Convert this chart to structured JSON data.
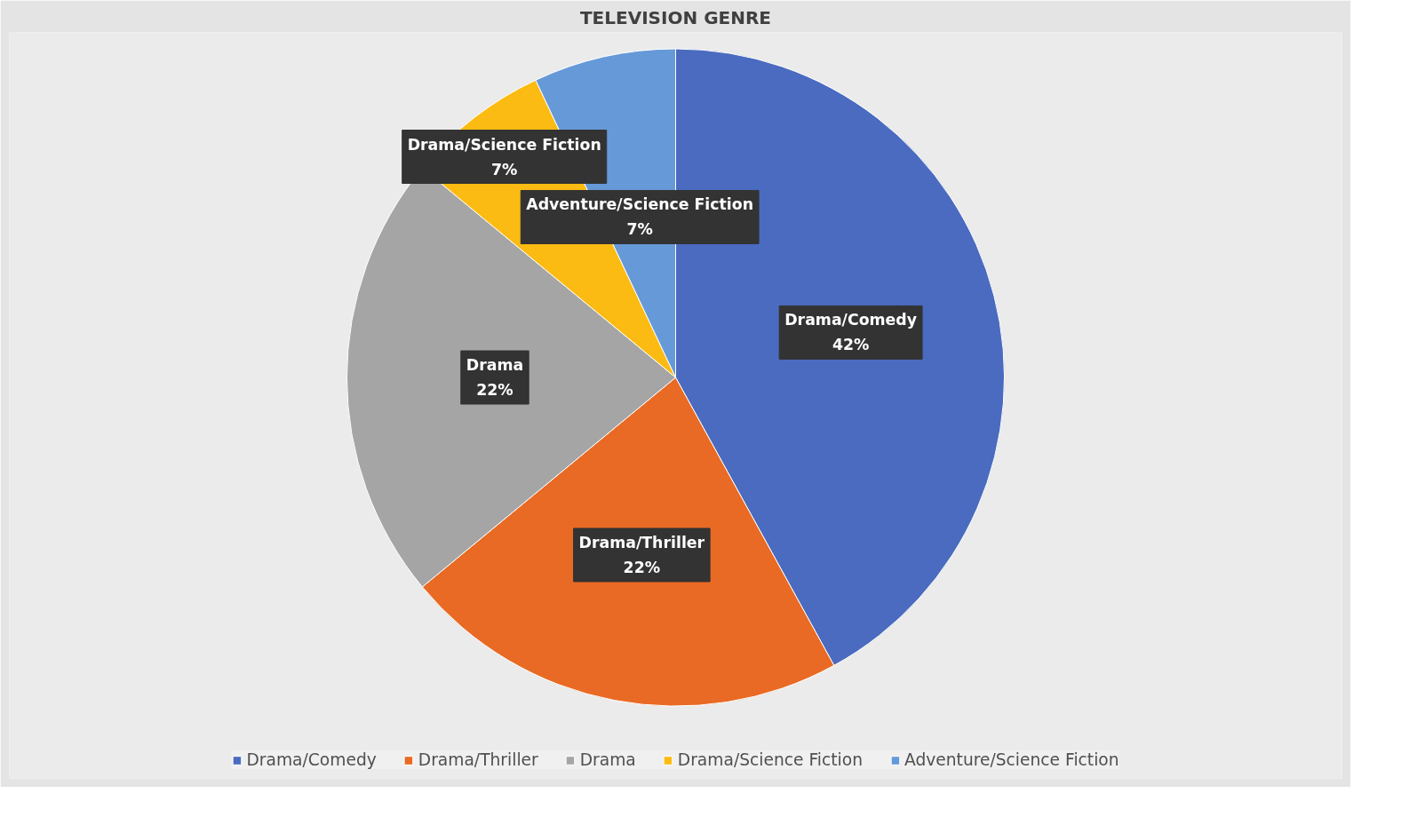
{
  "chart_data": {
    "type": "pie",
    "title": "TELEVISION GENRE",
    "categories": [
      "Drama/Comedy",
      "Drama/Thriller",
      "Drama",
      "Drama/Science Fiction",
      "Adventure/Science Fiction"
    ],
    "values": [
      42,
      22,
      22,
      7,
      7
    ],
    "value_labels": [
      "42%",
      "22%",
      "22%",
      "7%",
      "7%"
    ],
    "colors": [
      "#4a6bbf",
      "#e96a24",
      "#a5a5a5",
      "#fbbb12",
      "#6699d8"
    ],
    "legend": "bottom"
  }
}
